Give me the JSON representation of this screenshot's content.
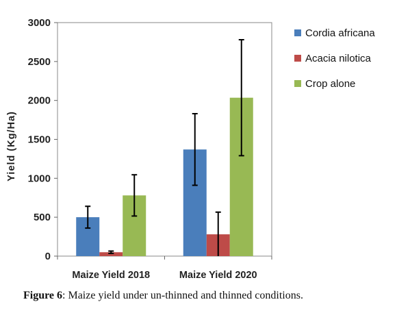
{
  "chart_data": {
    "type": "bar",
    "categories": [
      "Maize Yield 2018",
      "Maize Yield 2020"
    ],
    "series": [
      {
        "name": "Cordia africana",
        "color": "#4a7ebb",
        "values": [
          500,
          1370
        ],
        "error": [
          140,
          460
        ]
      },
      {
        "name": "Acacia nilotica",
        "color": "#be4b48",
        "values": [
          50,
          280
        ],
        "error": [
          15,
          285
        ]
      },
      {
        "name": "Crop alone",
        "color": "#98b954",
        "values": [
          780,
          2035
        ],
        "error": [
          265,
          745
        ]
      }
    ],
    "title": "",
    "xlabel": "",
    "ylabel": "Yield (Kg/Ha)",
    "ylim": [
      0,
      3000
    ],
    "yticks": [
      "0",
      "500",
      "1000",
      "1500",
      "2000",
      "2500",
      "3000"
    ],
    "legend_position": "right",
    "grid": false
  },
  "caption": {
    "label": "Figure 6",
    "text": ": Maize yield under un-thinned and thinned conditions."
  }
}
